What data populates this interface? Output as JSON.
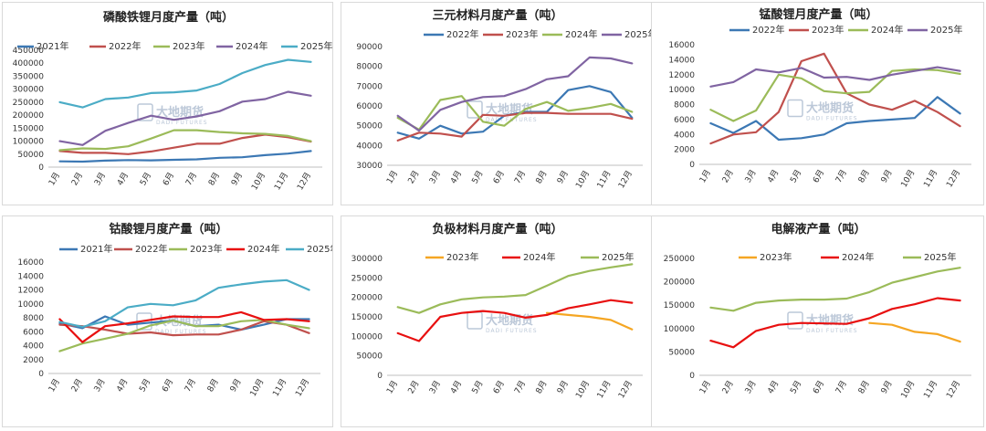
{
  "colors": {
    "blue": "#3c78b4",
    "red": "#c0504d",
    "green": "#9bbb59",
    "purple": "#8064a2",
    "cyan": "#4bacc6",
    "orange": "#f5a623",
    "brightred": "#e81010"
  },
  "watermark": {
    "brand": "大地期货",
    "brand_en": "DADI FUTURES"
  },
  "chart_data": [
    {
      "type": "line",
      "title": "磷酸铁锂月度产量（吨）",
      "categories": [
        "1月",
        "2月",
        "3月",
        "4月",
        "5月",
        "6月",
        "7月",
        "8月",
        "9月",
        "10月",
        "11月",
        "12月"
      ],
      "ylim": [
        0,
        450000
      ],
      "yticks": [
        0,
        50000,
        100000,
        150000,
        200000,
        250000,
        300000,
        350000,
        400000,
        450000
      ],
      "legend": "top",
      "series": [
        {
          "name": "2021年",
          "color": "#3c78b4",
          "values": [
            22000,
            21000,
            25000,
            27000,
            26000,
            28000,
            30000,
            36000,
            38000,
            46000,
            52000,
            62000
          ]
        },
        {
          "name": "2022年",
          "color": "#c0504d",
          "values": [
            62000,
            55000,
            55000,
            50000,
            60000,
            75000,
            90000,
            90000,
            112000,
            125000,
            115000,
            98000
          ]
        },
        {
          "name": "2023年",
          "color": "#9bbb59",
          "values": [
            65000,
            72000,
            70000,
            80000,
            110000,
            142000,
            142000,
            135000,
            130000,
            128000,
            120000,
            100000
          ]
        },
        {
          "name": "2024年",
          "color": "#8064a2",
          "values": [
            100000,
            85000,
            140000,
            170000,
            198000,
            182000,
            195000,
            215000,
            252000,
            262000,
            290000,
            275000
          ]
        },
        {
          "name": "2025年",
          "color": "#4bacc6",
          "values": [
            250000,
            230000,
            262000,
            268000,
            285000,
            288000,
            295000,
            320000,
            362000,
            393000,
            413000,
            405000
          ]
        }
      ]
    },
    {
      "type": "line",
      "title": "三元材料月度产量（吨）",
      "categories": [
        "1月",
        "2月",
        "3月",
        "4月",
        "5月",
        "6月",
        "7月",
        "8月",
        "9月",
        "10月",
        "11月",
        "12月"
      ],
      "ylim": [
        30000,
        90000
      ],
      "yticks": [
        30000,
        40000,
        50000,
        60000,
        70000,
        80000,
        90000
      ],
      "legend": "top",
      "series": [
        {
          "name": "2022年",
          "color": "#3c78b4",
          "values": [
            46500,
            43500,
            50000,
            46000,
            47000,
            55000,
            57000,
            57000,
            68000,
            70000,
            67000,
            54000
          ]
        },
        {
          "name": "2023年",
          "color": "#c0504d",
          "values": [
            42500,
            46500,
            46000,
            44500,
            55500,
            55000,
            56500,
            56500,
            56000,
            56000,
            56000,
            53500
          ]
        },
        {
          "name": "2024年",
          "color": "#9bbb59",
          "values": [
            54000,
            48000,
            63000,
            65000,
            52000,
            50000,
            58500,
            62000,
            57500,
            59000,
            61000,
            57000
          ]
        },
        {
          "name": "2025年",
          "color": "#8064a2",
          "values": [
            55000,
            47500,
            58000,
            62000,
            64500,
            65000,
            68500,
            73500,
            75000,
            84500,
            84000,
            81500
          ]
        }
      ]
    },
    {
      "type": "line",
      "title": "锰酸锂月度产量（吨）",
      "categories": [
        "1月",
        "2月",
        "3月",
        "4月",
        "5月",
        "6月",
        "7月",
        "8月",
        "9月",
        "10月",
        "11月",
        "12月"
      ],
      "ylim": [
        0,
        16000
      ],
      "yticks": [
        0,
        2000,
        4000,
        6000,
        8000,
        10000,
        12000,
        14000,
        16000
      ],
      "legend": "top",
      "series": [
        {
          "name": "2022年",
          "color": "#3c78b4",
          "values": [
            5500,
            4200,
            5800,
            3300,
            3500,
            4000,
            5500,
            5800,
            6000,
            6200,
            9000,
            6800
          ]
        },
        {
          "name": "2023年",
          "color": "#c0504d",
          "values": [
            2800,
            4000,
            4300,
            7000,
            13800,
            14800,
            9500,
            8000,
            7300,
            8500,
            7000,
            5100
          ]
        },
        {
          "name": "2024年",
          "color": "#9bbb59",
          "values": [
            7300,
            5800,
            7200,
            12000,
            11500,
            9800,
            9500,
            9700,
            12500,
            12700,
            12600,
            12100
          ]
        },
        {
          "name": "2025年",
          "color": "#8064a2",
          "values": [
            10400,
            11000,
            12700,
            12300,
            12900,
            11600,
            11700,
            11300,
            12000,
            12500,
            13000,
            12500
          ]
        }
      ]
    },
    {
      "type": "line",
      "title": "钴酸锂月度产量（吨）",
      "categories": [
        "1月",
        "2月",
        "3月",
        "4月",
        "5月",
        "6月",
        "7月",
        "8月",
        "9月",
        "10月",
        "11月",
        "12月"
      ],
      "ylim": [
        0,
        16000
      ],
      "yticks": [
        0,
        2000,
        4000,
        6000,
        8000,
        10000,
        12000,
        14000,
        16000
      ],
      "legend": "top",
      "series": [
        {
          "name": "2021年",
          "color": "#3c78b4",
          "values": [
            7200,
            6500,
            8200,
            7000,
            7300,
            7600,
            6800,
            7000,
            6300,
            7000,
            7800,
            7800
          ]
        },
        {
          "name": "2022年",
          "color": "#c0504d",
          "values": [
            7000,
            6800,
            6300,
            5700,
            5900,
            5500,
            5600,
            5600,
            6300,
            7500,
            7000,
            5800
          ]
        },
        {
          "name": "2023年",
          "color": "#9bbb59",
          "values": [
            3200,
            4300,
            5000,
            5700,
            6900,
            7600,
            6800,
            6800,
            7500,
            7700,
            7000,
            6500
          ]
        },
        {
          "name": "2024年",
          "color": "#e81010",
          "values": [
            7800,
            4500,
            6800,
            7200,
            7700,
            8200,
            8100,
            8100,
            8800,
            7700,
            7800,
            7500
          ]
        },
        {
          "name": "2025年",
          "color": "#4bacc6",
          "values": [
            7400,
            6700,
            7500,
            9500,
            10000,
            9800,
            10500,
            12300,
            12800,
            13200,
            13400,
            12000
          ]
        }
      ]
    },
    {
      "type": "line",
      "title": "负极材料月度产量（吨）",
      "categories": [
        "1月",
        "2月",
        "3月",
        "4月",
        "5月",
        "6月",
        "7月",
        "8月",
        "9月",
        "10月",
        "11月",
        "12月"
      ],
      "ylim": [
        0,
        300000
      ],
      "yticks": [
        0,
        50000,
        100000,
        150000,
        200000,
        250000,
        300000
      ],
      "legend": "top",
      "series": [
        {
          "name": "2023年",
          "color": "#f5a623",
          "values": [
            null,
            null,
            null,
            null,
            null,
            null,
            null,
            160000,
            155000,
            150000,
            142000,
            118000
          ]
        },
        {
          "name": "2024年",
          "color": "#e81010",
          "values": [
            108000,
            88000,
            150000,
            160000,
            165000,
            160000,
            148000,
            155000,
            172000,
            182000,
            193000,
            186000
          ]
        },
        {
          "name": "2025年",
          "color": "#9bbb59",
          "values": [
            175000,
            160000,
            182000,
            195000,
            200000,
            202000,
            206000,
            230000,
            255000,
            268000,
            277000,
            285000
          ]
        }
      ]
    },
    {
      "type": "line",
      "title": "电解液产量（吨）",
      "categories": [
        "1月",
        "2月",
        "3月",
        "4月",
        "5月",
        "6月",
        "7月",
        "8月",
        "9月",
        "10月",
        "11月",
        "12月"
      ],
      "ylim": [
        0,
        250000
      ],
      "yticks": [
        0,
        50000,
        100000,
        150000,
        200000,
        250000
      ],
      "legend": "top",
      "series": [
        {
          "name": "2023年",
          "color": "#f5a623",
          "values": [
            null,
            null,
            null,
            null,
            null,
            null,
            null,
            112000,
            108000,
            93000,
            88000,
            72000
          ]
        },
        {
          "name": "2024年",
          "color": "#e81010",
          "values": [
            74000,
            60000,
            95000,
            108000,
            112000,
            111000,
            110000,
            122000,
            142000,
            152000,
            165000,
            160000
          ]
        },
        {
          "name": "2025年",
          "color": "#9bbb59",
          "values": [
            145000,
            138000,
            155000,
            160000,
            162000,
            162000,
            164000,
            178000,
            198000,
            210000,
            222000,
            230000
          ]
        }
      ]
    }
  ]
}
